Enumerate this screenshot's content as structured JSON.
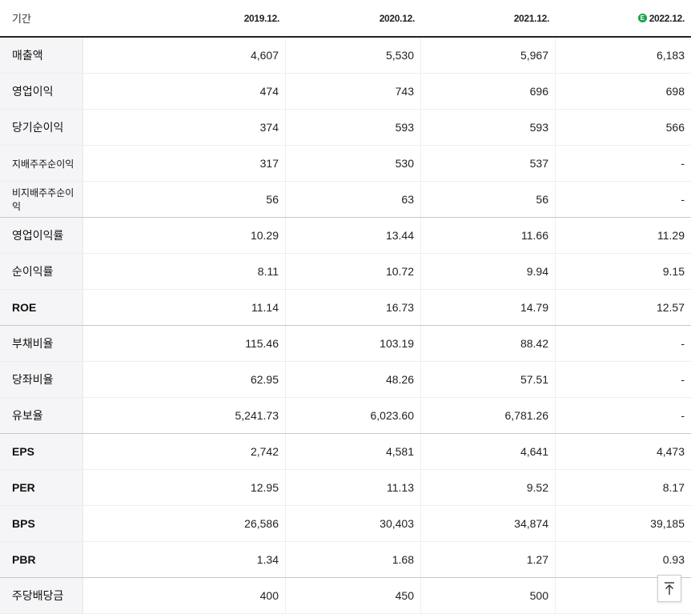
{
  "header": {
    "label": "기간",
    "periods": [
      "2019.12.",
      "2020.12.",
      "2021.12.",
      "2022.12."
    ],
    "estimate_badge": "E"
  },
  "rows": [
    {
      "label": "매출액",
      "values": [
        "4,607",
        "5,530",
        "5,967",
        "6,183"
      ]
    },
    {
      "label": "영업이익",
      "values": [
        "474",
        "743",
        "696",
        "698"
      ]
    },
    {
      "label": "당기순이익",
      "values": [
        "374",
        "593",
        "593",
        "566"
      ]
    },
    {
      "label": "지배주주순이익",
      "values": [
        "317",
        "530",
        "537",
        "-"
      ]
    },
    {
      "label": "비지배주주순이익",
      "values": [
        "56",
        "63",
        "56",
        "-"
      ]
    },
    {
      "label": "영업이익률",
      "values": [
        "10.29",
        "13.44",
        "11.66",
        "11.29"
      ]
    },
    {
      "label": "순이익률",
      "values": [
        "8.11",
        "10.72",
        "9.94",
        "9.15"
      ]
    },
    {
      "label": "ROE",
      "values": [
        "11.14",
        "16.73",
        "14.79",
        "12.57"
      ]
    },
    {
      "label": "부채비율",
      "values": [
        "115.46",
        "103.19",
        "88.42",
        "-"
      ]
    },
    {
      "label": "당좌비율",
      "values": [
        "62.95",
        "48.26",
        "57.51",
        "-"
      ]
    },
    {
      "label": "유보율",
      "values": [
        "5,241.73",
        "6,023.60",
        "6,781.26",
        "-"
      ]
    },
    {
      "label": "EPS",
      "values": [
        "2,742",
        "4,581",
        "4,641",
        "4,473"
      ]
    },
    {
      "label": "PER",
      "values": [
        "12.95",
        "11.13",
        "9.52",
        "8.17"
      ]
    },
    {
      "label": "BPS",
      "values": [
        "26,586",
        "30,403",
        "34,874",
        "39,185"
      ]
    },
    {
      "label": "PBR",
      "values": [
        "1.34",
        "1.68",
        "1.27",
        "0.93"
      ]
    },
    {
      "label": "주당배당금",
      "values": [
        "400",
        "450",
        "500",
        ""
      ]
    }
  ],
  "colors": {
    "estimate_badge": "#16a34a",
    "label_background": "#f5f5f7"
  },
  "icons": {
    "top_button": "arrow-up-to-top-icon"
  }
}
